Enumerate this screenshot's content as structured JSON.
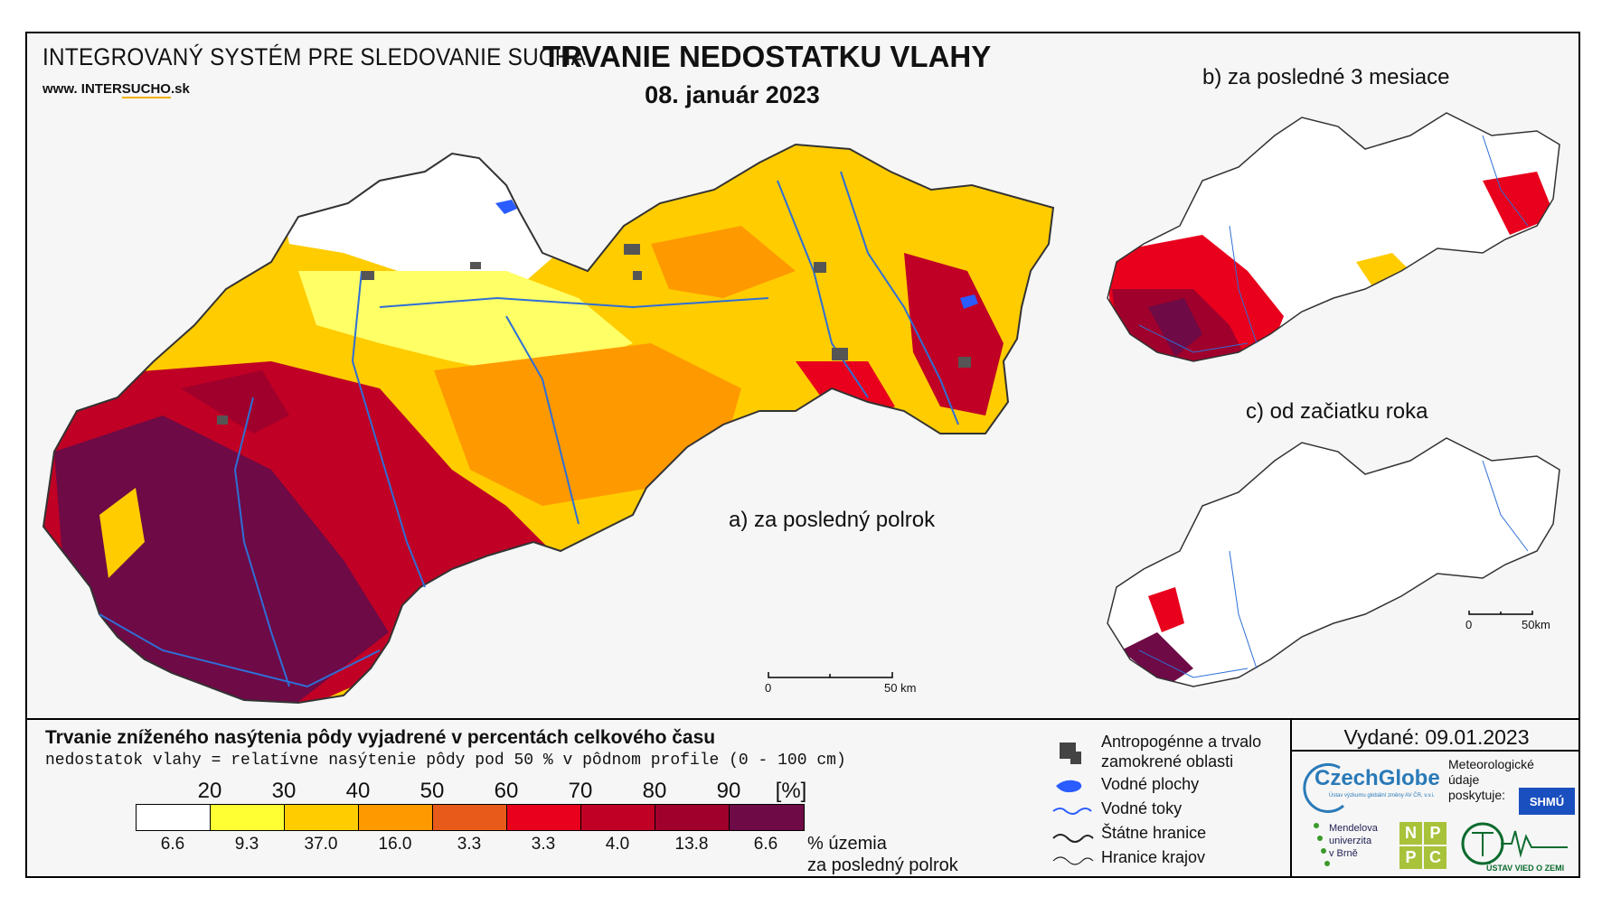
{
  "header": {
    "system_title": "INTEGROVANÝ SYSTÉM PRE SLEDOVANIE SUCHA",
    "website_prefix": "www.",
    "website_inter": "INTER",
    "website_sucho": "SUCHO",
    "website_suffix": ".sk",
    "title": "TRVANIE NEDOSTATKU VLAHY",
    "date": "08. január 2023"
  },
  "panels": {
    "a": "a) za posledný polrok",
    "b": "b) za posledné 3 mesiace",
    "c": "c) od začiatku roka"
  },
  "scale": {
    "main": {
      "zero": "0",
      "end": "50 km"
    },
    "small": {
      "zero": "0",
      "end": "50km"
    }
  },
  "legend": {
    "title": "Trvanie zníženého nasýtenia pôdy vyjadrené v percentách celkového času",
    "subtitle": "nedostatok vlahy = relatívne nasýtenie pôdy pod 50 % v pôdnom profile (0 - 100 cm)",
    "thresholds": [
      "20",
      "30",
      "40",
      "50",
      "60",
      "70",
      "80",
      "90"
    ],
    "unit": "[%]",
    "colors": [
      "#ffffff",
      "#ffff33",
      "#ffcc00",
      "#ff9900",
      "#e85a1a",
      "#e8001c",
      "#c00024",
      "#a0002c",
      "#6e0a46"
    ],
    "percent_of_territory": [
      "6.6",
      "9.3",
      "37.0",
      "16.0",
      "3.3",
      "3.3",
      "4.0",
      "13.8",
      "6.6"
    ],
    "percent_label_line1": "% územia",
    "percent_label_line2": "za posledný polrok"
  },
  "symbols": {
    "anthropogenic_line1": "Antropogénne a trvalo",
    "anthropogenic_line2": "zamokrené oblasti",
    "water_bodies": "Vodné plochy",
    "water_streams": "Vodné toky",
    "state_border": "Štátne hranice",
    "region_border": "Hranice krajov"
  },
  "issued": "Vydané: 09.01.2023",
  "logos": {
    "czechglobe": "CzechGlobe",
    "czechglobe_sub": "Ústav výzkumu globální změny AV ČR, v.v.i.",
    "meteo_line1": "Meteorologické",
    "meteo_line2": "údaje",
    "meteo_line3": "poskytuje:",
    "shmu": "SHMÚ",
    "mendel_line1": "Mendelova",
    "mendel_line2": "univerzita",
    "mendel_line3": "v Brně",
    "nppc": [
      "N",
      "P",
      "P",
      "C"
    ],
    "uvz": "ÚSTAV VIED O ZEMI"
  }
}
